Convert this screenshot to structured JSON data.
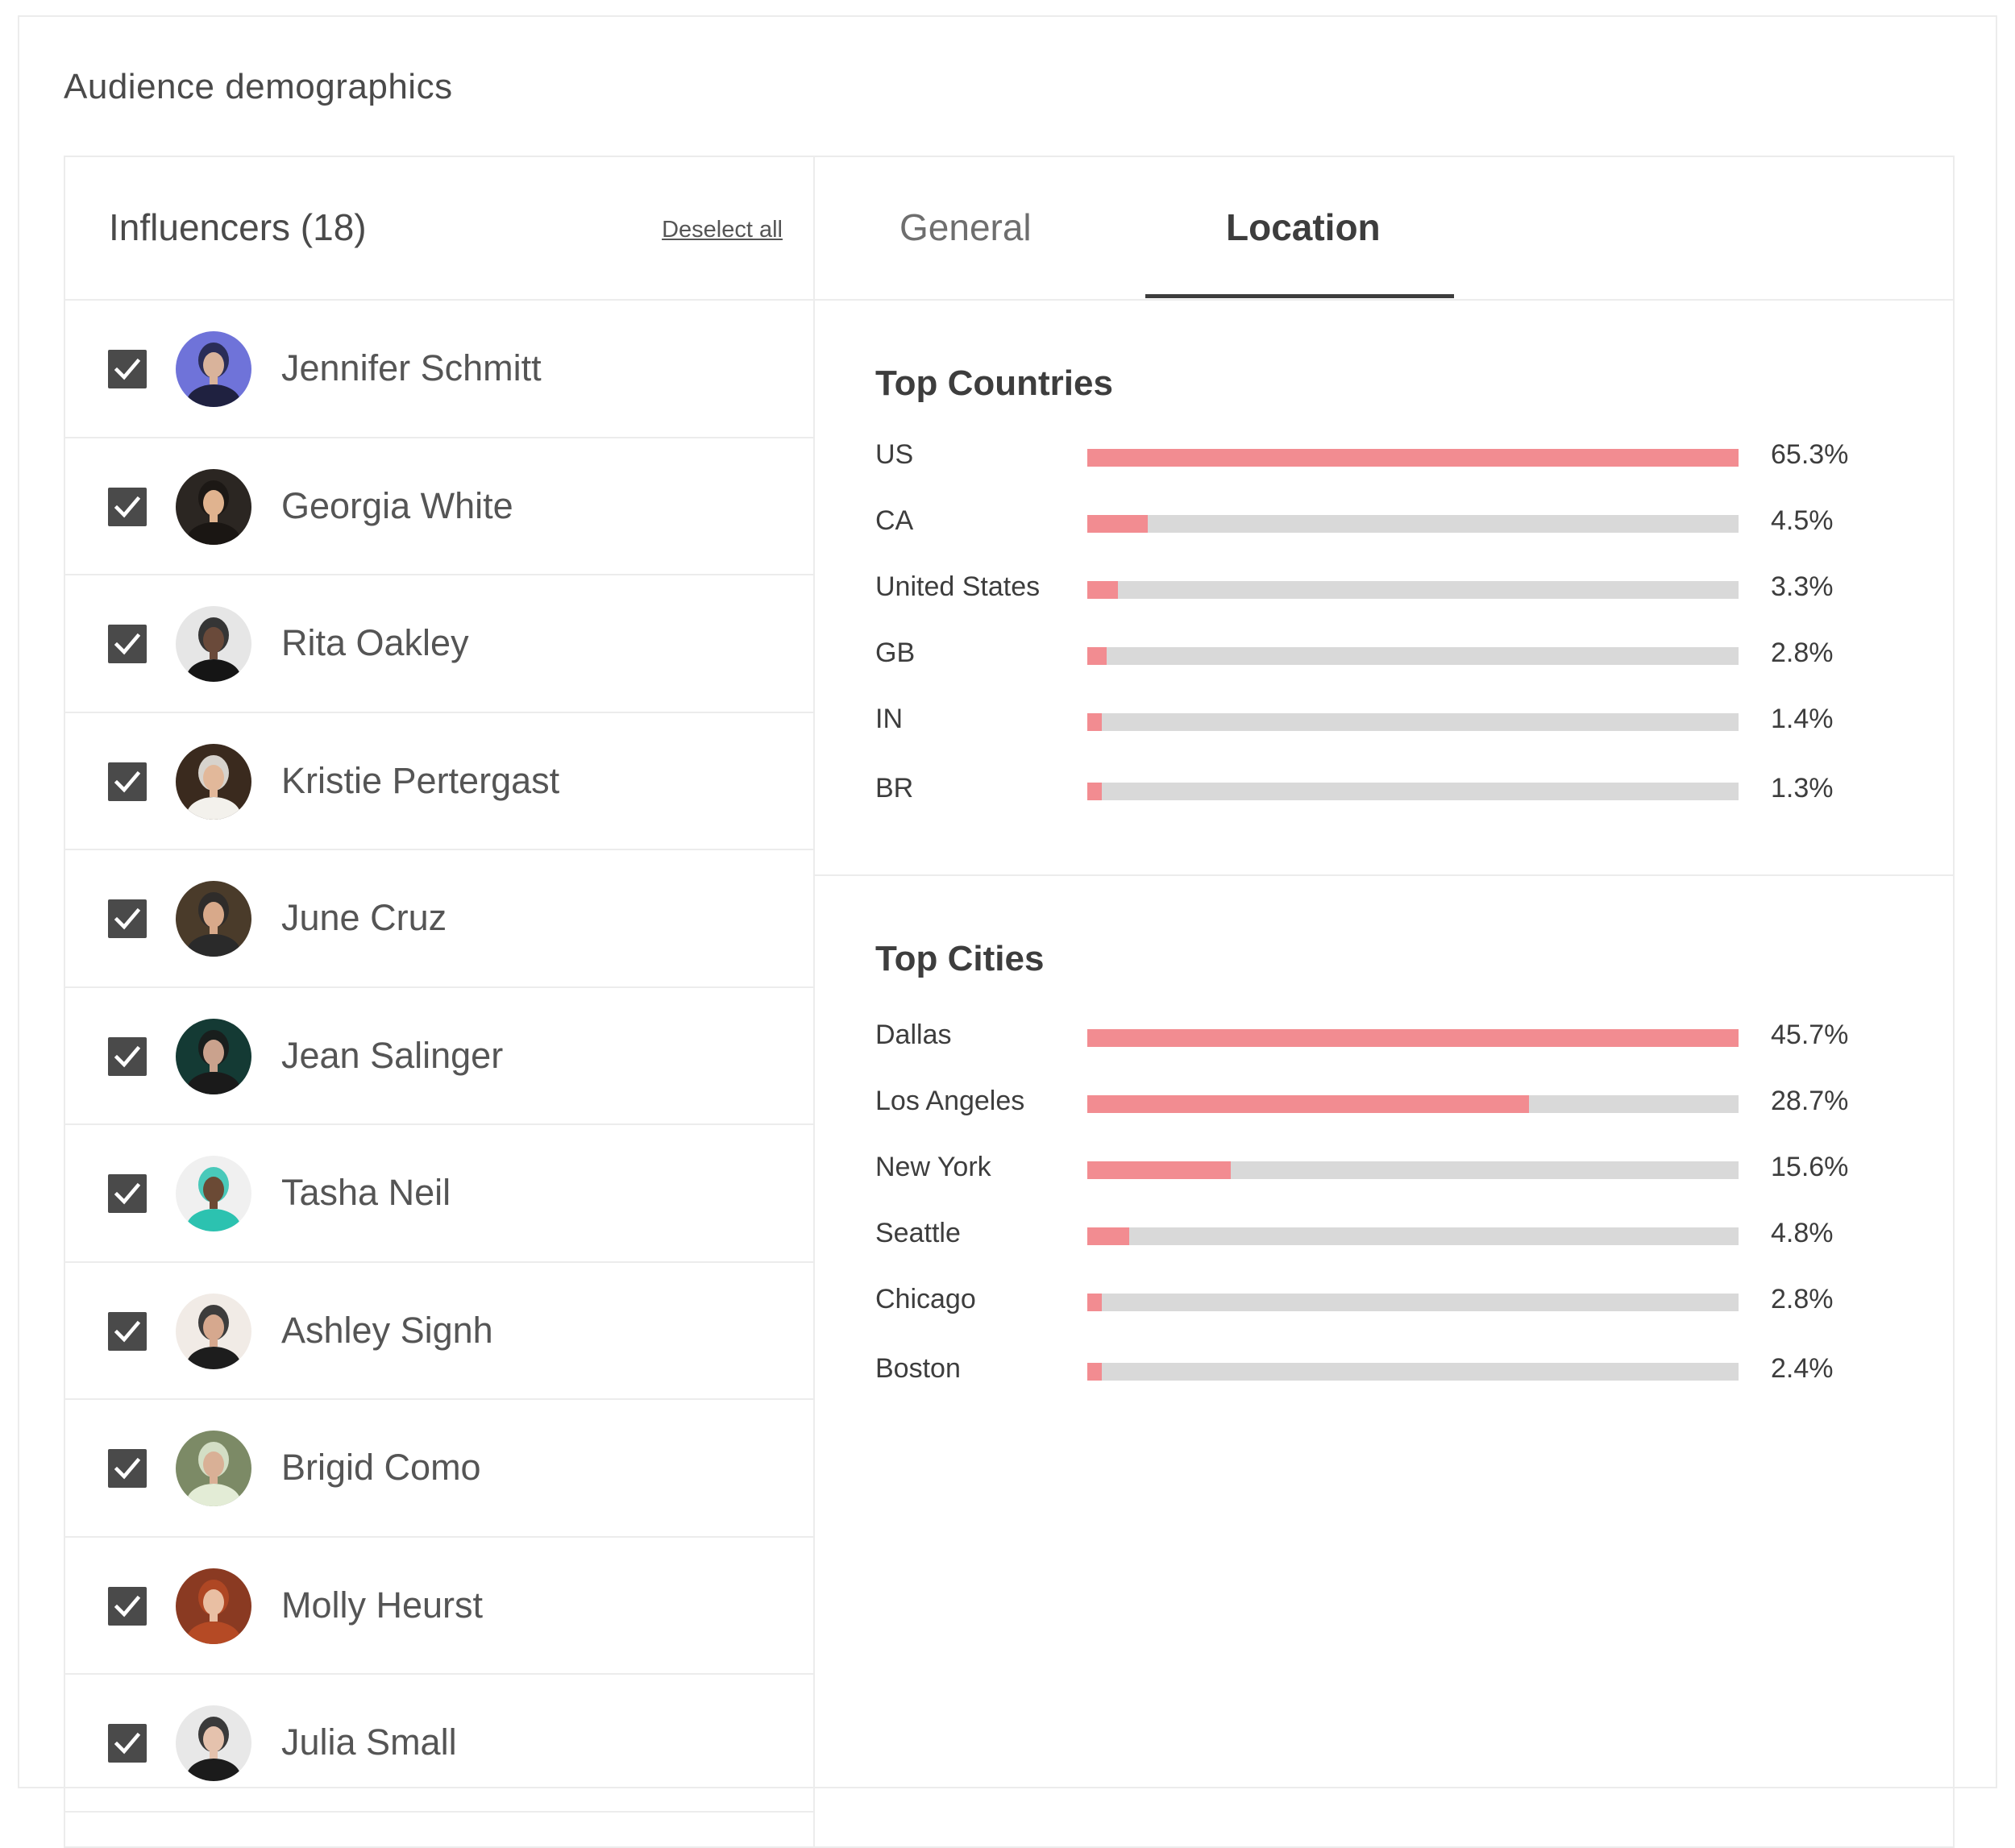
{
  "page": {
    "title": "Audience demographics"
  },
  "influencers": {
    "header": "Influencers (18)",
    "deselect_label": "Deselect all",
    "items": [
      {
        "name": "Jennifer Schmitt",
        "checked": true,
        "avatar_bg": "#6f73d9",
        "avatar_fg": "#1f2140",
        "avatar_skin": "#d9b39b"
      },
      {
        "name": "Georgia White",
        "checked": true,
        "avatar_bg": "#2b2622",
        "avatar_fg": "#1a1613",
        "avatar_skin": "#e0b38f"
      },
      {
        "name": "Rita Oakley",
        "checked": true,
        "avatar_bg": "#e6e6e6",
        "avatar_fg": "#151515",
        "avatar_skin": "#6a4a3a"
      },
      {
        "name": "Kristie Pertergast",
        "checked": true,
        "avatar_bg": "#3a2a1e",
        "avatar_fg": "#f3f1ec",
        "avatar_skin": "#e2b89a"
      },
      {
        "name": "June Cruz",
        "checked": true,
        "avatar_bg": "#4a3b2a",
        "avatar_fg": "#2a2a2a",
        "avatar_skin": "#d8a98a"
      },
      {
        "name": "Jean Salinger",
        "checked": true,
        "avatar_bg": "#143a34",
        "avatar_fg": "#1a1a1a",
        "avatar_skin": "#caa28d"
      },
      {
        "name": "Tasha Neil",
        "checked": true,
        "avatar_bg": "#f0f0f0",
        "avatar_fg": "#2cc2b0",
        "avatar_skin": "#6b4a35"
      },
      {
        "name": "Ashley Signh",
        "checked": true,
        "avatar_bg": "#f1ebe6",
        "avatar_fg": "#1d1d1d",
        "avatar_skin": "#d6a88e"
      },
      {
        "name": "Brigid Como",
        "checked": true,
        "avatar_bg": "#7c8a66",
        "avatar_fg": "#e3ecd6",
        "avatar_skin": "#d9b096"
      },
      {
        "name": "Molly Heurst",
        "checked": true,
        "avatar_bg": "#8a3a22",
        "avatar_fg": "#b54a25",
        "avatar_skin": "#e9bfa3"
      },
      {
        "name": "Julia Small",
        "checked": true,
        "avatar_bg": "#e8e8e8",
        "avatar_fg": "#1b1b1b",
        "avatar_skin": "#e5c2ad"
      }
    ]
  },
  "tabs": {
    "general": "General",
    "location": "Location",
    "active": "location"
  },
  "colors": {
    "bar_fill": "#f28c91",
    "bar_track": "#d9d9d9"
  },
  "top_countries": {
    "title": "Top Countries",
    "rows": [
      {
        "label": "US",
        "value_label": "65.3%",
        "fill": 1.0
      },
      {
        "label": "CA",
        "value_label": "4.5%",
        "fill": 0.093
      },
      {
        "label": "United States",
        "value_label": "3.3%",
        "fill": 0.047
      },
      {
        "label": "GB",
        "value_label": "2.8%",
        "fill": 0.03
      },
      {
        "label": "IN",
        "value_label": "1.4%",
        "fill": 0.022
      },
      {
        "label": "BR",
        "value_label": "1.3%",
        "fill": 0.022
      }
    ]
  },
  "top_cities": {
    "title": "Top Cities",
    "rows": [
      {
        "label": "Dallas",
        "value_label": "45.7%",
        "fill": 1.0
      },
      {
        "label": "Los Angeles",
        "value_label": "28.7%",
        "fill": 0.678
      },
      {
        "label": "New York",
        "value_label": "15.6%",
        "fill": 0.22
      },
      {
        "label": "Seattle",
        "value_label": "4.8%",
        "fill": 0.064
      },
      {
        "label": "Chicago",
        "value_label": "2.8%",
        "fill": 0.022
      },
      {
        "label": "Boston",
        "value_label": "2.4%",
        "fill": 0.022
      }
    ]
  }
}
